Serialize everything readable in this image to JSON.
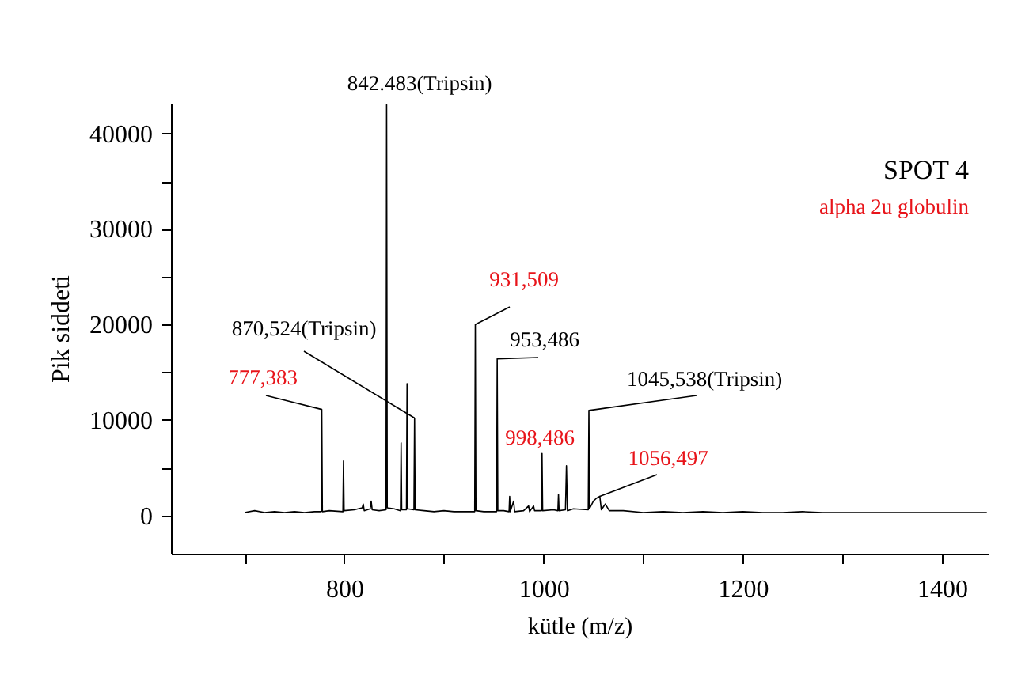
{
  "chart_data": {
    "type": "line",
    "title": "SPOT 4",
    "subtitle": "alpha 2u globulin",
    "xlabel": "kütle (m/z)",
    "ylabel": "Pik siddeti",
    "xlim": [
      626,
      1446
    ],
    "ylim": [
      -4000,
      43200
    ],
    "xticks": [
      {
        "value": 700,
        "label": null
      },
      800,
      {
        "value": 900,
        "label": null
      },
      1000,
      {
        "value": 1100,
        "label": null
      },
      1200,
      {
        "value": 1300,
        "label": null
      },
      1400
    ],
    "yticks": [
      0,
      {
        "value": 5000,
        "label": null
      },
      10000,
      {
        "value": 15000,
        "label": null
      },
      20000,
      {
        "value": 25000,
        "label": null
      },
      30000,
      {
        "value": 35000,
        "label": null
      },
      40000
    ],
    "grid": false,
    "series": [
      {
        "color": "#000000",
        "x": [
          700,
          710,
          720,
          730,
          740,
          750,
          760,
          770,
          776.8,
          777.383,
          778,
          785,
          798.6,
          799.2,
          799.8,
          810,
          818,
          819,
          820,
          826,
          827,
          828,
          835,
          841.9,
          842.483,
          843.1,
          850,
          856.4,
          857,
          857.6,
          862.4,
          863,
          863.6,
          869.9,
          870.524,
          871.1,
          880,
          890,
          900,
          910,
          920,
          930.9,
          931.509,
          932.1,
          940,
          952.9,
          953.486,
          954.1,
          960,
          965.4,
          966,
          966.6,
          970,
          971,
          980,
          985,
          986,
          990,
          991,
          997.9,
          998.486,
          999.1,
          1010,
          1014.4,
          1015,
          1015.6,
          1022,
          1023,
          1024,
          1030,
          1044.9,
          1045.538,
          1046.1,
          1050,
          1053,
          1056.497,
          1058,
          1062,
          1066,
          1080,
          1100,
          1120,
          1140,
          1160,
          1180,
          1200,
          1220,
          1240,
          1260,
          1280,
          1300,
          1320,
          1340,
          1360,
          1380,
          1400,
          1420,
          1445
        ],
        "values": [
          300,
          500,
          300,
          400,
          300,
          400,
          300,
          400,
          400,
          11100,
          400,
          500,
          400,
          5700,
          500,
          600,
          800,
          1200,
          500,
          700,
          1500,
          600,
          500,
          600,
          43000,
          800,
          700,
          500,
          7600,
          600,
          600,
          13800,
          700,
          600,
          10200,
          600,
          500,
          400,
          500,
          400,
          400,
          400,
          20000,
          500,
          400,
          400,
          16400,
          500,
          500,
          400,
          2000,
          400,
          1500,
          400,
          500,
          1000,
          400,
          1000,
          500,
          500,
          6500,
          500,
          600,
          500,
          2200,
          500,
          600,
          5200,
          500,
          700,
          600,
          11000,
          700,
          1500,
          1800,
          2000,
          600,
          1200,
          500,
          500,
          300,
          400,
          300,
          400,
          300,
          400,
          300,
          300,
          400,
          300,
          300,
          300,
          300,
          300,
          300,
          300,
          300,
          300
        ]
      }
    ],
    "annotations": [
      {
        "text": "842.483(Tripsin)",
        "x": 842.483,
        "y": 43000
      },
      {
        "text": "870,524(Tripsin)",
        "x": 870.524,
        "y": 10200
      },
      {
        "text": "777,383",
        "x": 777.383,
        "y": 11100
      },
      {
        "text": "931,509",
        "x": 931.509,
        "y": 20000
      },
      {
        "text": "953,486",
        "x": 953.486,
        "y": 16400
      },
      {
        "text": "1045,538(Tripsin)",
        "x": 1045.538,
        "y": 11000
      },
      {
        "text": "998,486",
        "x": 998.486,
        "y": 6500
      },
      {
        "text": "1056,497",
        "x": 1056.497,
        "y": 2000
      }
    ]
  }
}
